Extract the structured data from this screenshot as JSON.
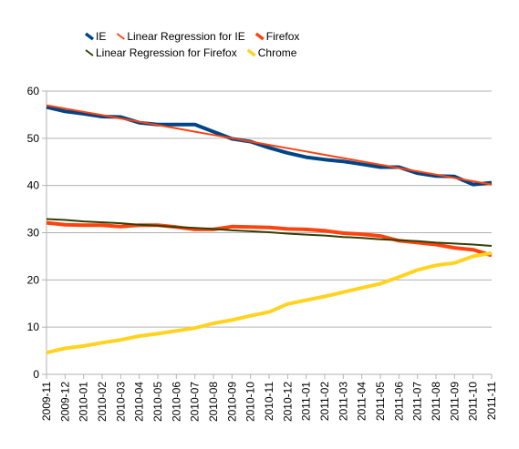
{
  "chart_data": {
    "type": "line",
    "title": "",
    "xlabel": "",
    "ylabel": "",
    "ylim": [
      0,
      60
    ],
    "yticks": [
      0,
      10,
      20,
      30,
      40,
      50,
      60
    ],
    "grid": true,
    "legend_position": "top",
    "categories": [
      "2009-11",
      "2009-12",
      "2010-01",
      "2010-02",
      "2010-03",
      "2010-04",
      "2010-05",
      "2010-06",
      "2010-07",
      "2010-08",
      "2010-09",
      "2010-10",
      "2010-11",
      "2010-12",
      "2011-01",
      "2011-02",
      "2011-03",
      "2011-04",
      "2011-05",
      "2011-06",
      "2011-07",
      "2011-08",
      "2011-09",
      "2011-10",
      "2011-11"
    ],
    "series": [
      {
        "name": "IE",
        "color": "#004586",
        "width": 4,
        "legend_row": 0,
        "values": [
          56.6,
          55.7,
          55.2,
          54.6,
          54.5,
          53.3,
          52.9,
          52.9,
          52.9,
          51.4,
          49.9,
          49.3,
          48.0,
          46.9,
          46.0,
          45.5,
          45.1,
          44.5,
          43.9,
          43.9,
          42.6,
          42.0,
          41.9,
          40.2,
          40.6
        ]
      },
      {
        "name": "Linear Regression for IE",
        "color": "#ff420e",
        "width": 2,
        "legend_row": 0,
        "values": [
          57.0,
          56.3,
          55.6,
          54.9,
          54.2,
          53.5,
          52.8,
          52.1,
          51.4,
          50.7,
          50.0,
          49.3,
          48.6,
          47.9,
          47.2,
          46.5,
          45.8,
          45.1,
          44.4,
          43.7,
          43.0,
          42.3,
          41.6,
          40.9,
          40.2
        ]
      },
      {
        "name": "Firefox",
        "color": "#ff420e",
        "width": 4,
        "legend_row": 0,
        "values": [
          32.1,
          31.7,
          31.6,
          31.6,
          31.3,
          31.6,
          31.6,
          31.2,
          30.7,
          30.7,
          31.3,
          31.2,
          31.1,
          30.8,
          30.7,
          30.4,
          29.9,
          29.7,
          29.3,
          28.3,
          27.9,
          27.5,
          26.8,
          26.4,
          25.2
        ]
      },
      {
        "name": "Linear Regression for Firefox",
        "color": "#314004",
        "width": 2,
        "legend_row": 1,
        "values": [
          32.9,
          32.7,
          32.4,
          32.2,
          32.0,
          31.7,
          31.5,
          31.2,
          31.0,
          30.8,
          30.5,
          30.3,
          30.1,
          29.8,
          29.6,
          29.4,
          29.1,
          28.9,
          28.6,
          28.4,
          28.2,
          27.9,
          27.7,
          27.5,
          27.2
        ]
      },
      {
        "name": "Chrome",
        "color": "#ffd320",
        "width": 4,
        "legend_row": 1,
        "values": [
          4.6,
          5.5,
          6.0,
          6.7,
          7.3,
          8.1,
          8.6,
          9.2,
          9.8,
          10.8,
          11.5,
          12.4,
          13.2,
          14.9,
          15.7,
          16.5,
          17.4,
          18.3,
          19.2,
          20.6,
          22.1,
          23.1,
          23.6,
          25.0,
          25.7
        ]
      }
    ]
  }
}
